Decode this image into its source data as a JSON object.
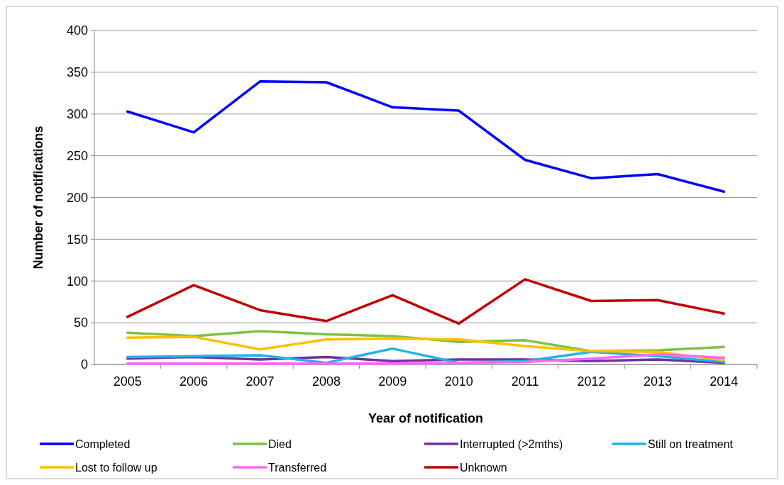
{
  "chart_data": {
    "type": "line",
    "xlabel": "Year of notification",
    "ylabel": "Number of notifications",
    "categories": [
      "2005",
      "2006",
      "2007",
      "2008",
      "2009",
      "2010",
      "2011",
      "2012",
      "2013",
      "2014"
    ],
    "series": [
      {
        "name": "Completed",
        "color": "#0000ff",
        "values": [
          303,
          278,
          339,
          338,
          308,
          304,
          245,
          223,
          228,
          207
        ]
      },
      {
        "name": "Died",
        "color": "#7ec242",
        "values": [
          38,
          34,
          40,
          36,
          34,
          27,
          29,
          16,
          17,
          21
        ]
      },
      {
        "name": "Interrupted (>2mths)",
        "color": "#7030a0",
        "values": [
          7,
          9,
          6,
          9,
          4,
          6,
          6,
          4,
          6,
          2
        ]
      },
      {
        "name": "Still on treatment",
        "color": "#1eb4e6",
        "values": [
          9,
          10,
          11,
          2,
          19,
          2,
          4,
          15,
          10,
          3
        ]
      },
      {
        "name": "Lost to follow up",
        "color": "#ffc000",
        "values": [
          32,
          33,
          18,
          30,
          31,
          30,
          22,
          16,
          15,
          5
        ]
      },
      {
        "name": "Transferred",
        "color": "#ff66ff",
        "values": [
          1,
          1,
          1,
          1,
          1,
          2,
          3,
          7,
          12,
          8
        ]
      },
      {
        "name": "Unknown",
        "color": "#c00000",
        "values": [
          57,
          95,
          65,
          52,
          83,
          49,
          102,
          76,
          77,
          61
        ]
      }
    ],
    "ylim": [
      0,
      400
    ],
    "yticks": [
      0,
      50,
      100,
      150,
      200,
      250,
      300,
      350,
      400
    ],
    "grid": "y",
    "legend": "bottom",
    "marker": "none",
    "line_style": "solid"
  }
}
